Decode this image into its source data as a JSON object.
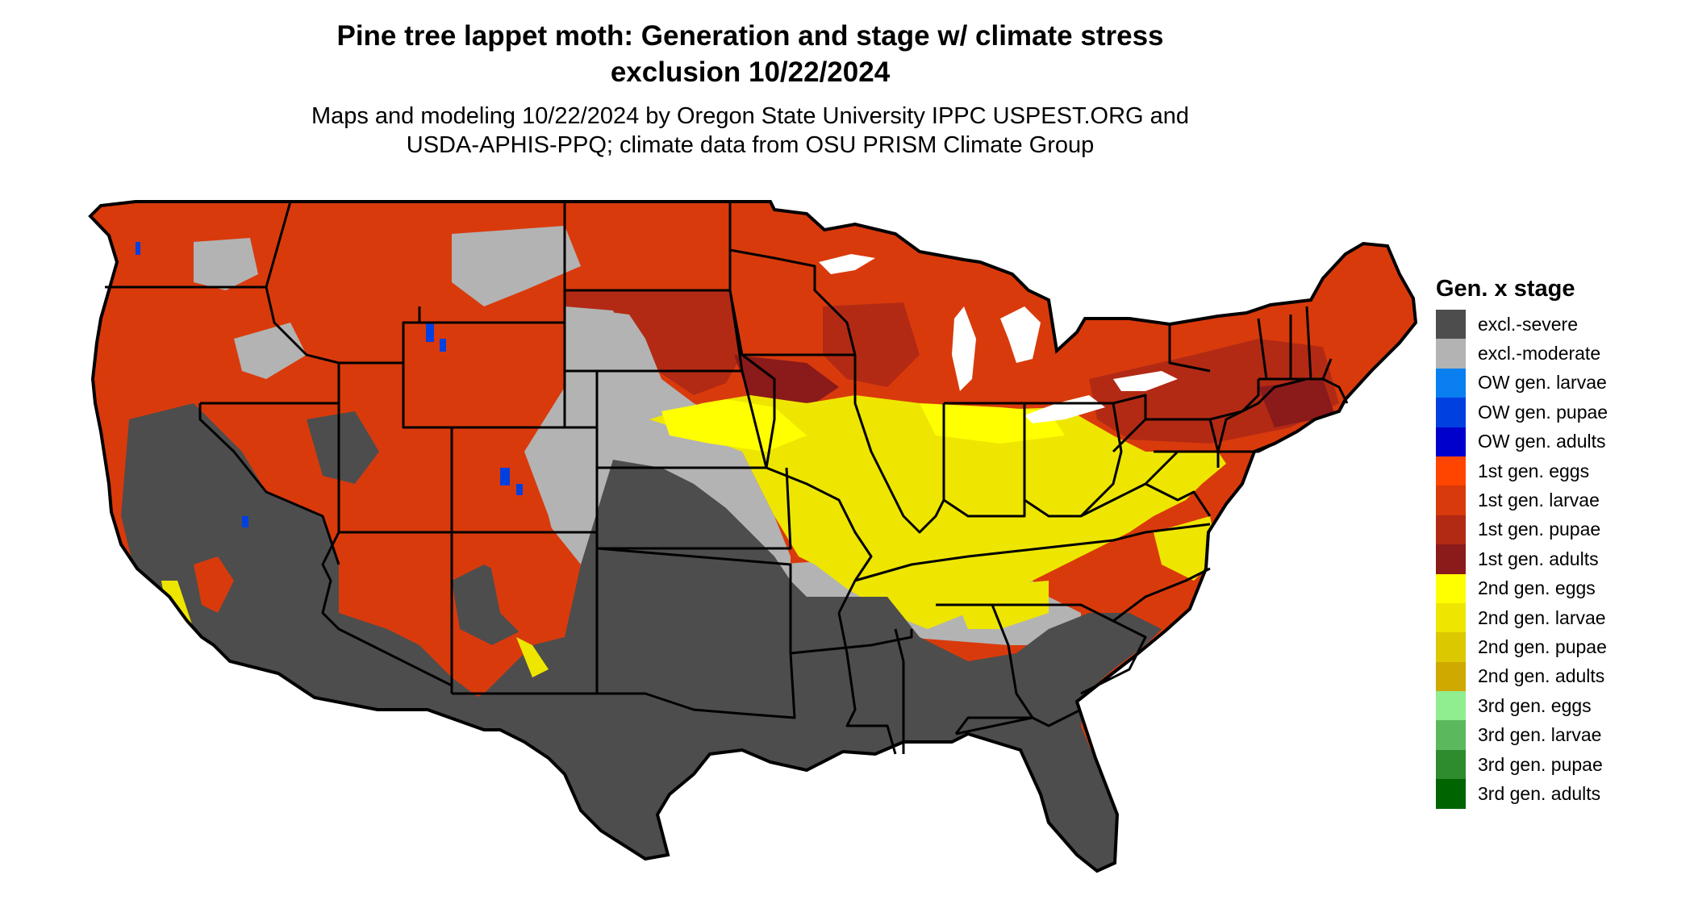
{
  "title_lines": [
    "Pine tree lappet moth: Generation and stage w/ climate stress",
    "exclusion 10/22/2024"
  ],
  "subtitle_lines": [
    "Maps and modeling 10/22/2024 by Oregon State University IPPC USPEST.ORG and",
    "USDA-APHIS-PPQ; climate data from OSU PRISM Climate Group"
  ],
  "legend": {
    "title": "Gen. x stage",
    "items": [
      {
        "label": "excl.-severe",
        "color": "#4d4d4d"
      },
      {
        "label": "excl.-moderate",
        "color": "#b3b3b3"
      },
      {
        "label": "OW gen. larvae",
        "color": "#0a7fef"
      },
      {
        "label": "OW gen. pupae",
        "color": "#0040e0"
      },
      {
        "label": "OW gen. adults",
        "color": "#0000cd"
      },
      {
        "label": "1st gen. eggs",
        "color": "#ff4500"
      },
      {
        "label": "1st gen. larvae",
        "color": "#d93a0c"
      },
      {
        "label": "1st gen. pupae",
        "color": "#b22a14"
      },
      {
        "label": "1st gen. adults",
        "color": "#8b1a1a"
      },
      {
        "label": "2nd gen. eggs",
        "color": "#ffff00"
      },
      {
        "label": "2nd gen. larvae",
        "color": "#eee600"
      },
      {
        "label": "2nd gen. pupae",
        "color": "#dcc800"
      },
      {
        "label": "2nd gen. adults",
        "color": "#cfa800"
      },
      {
        "label": "3rd gen. eggs",
        "color": "#90ee90"
      },
      {
        "label": "3rd gen. larvae",
        "color": "#5cb85c"
      },
      {
        "label": "3rd gen. pupae",
        "color": "#2e8b2e"
      },
      {
        "label": "3rd gen. adults",
        "color": "#006400"
      }
    ]
  },
  "map_colors": {
    "severe": "#4d4d4d",
    "moderate": "#b3b3b3",
    "first_larvae": "#d93a0c",
    "first_pupae": "#b22a14",
    "first_adults": "#8b1a1a",
    "second_eggs": "#ffff00",
    "second_larvae": "#eee600",
    "ow_pupae": "#0040e0",
    "third_larvae": "#5cb85c",
    "border": "#000000",
    "lake": "#ffffff"
  }
}
